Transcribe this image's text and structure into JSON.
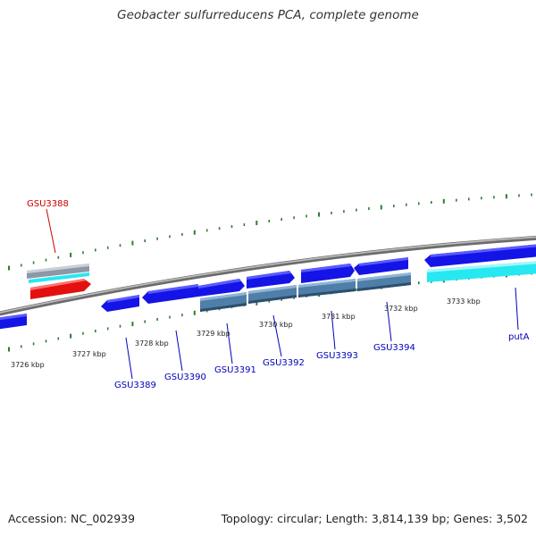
{
  "title": "Geobacter sulfurreducens PCA, complete genome",
  "footer": {
    "accession": "Accession: NC_002939",
    "summary": "Topology: circular; Length: 3,814,139 bp; Genes: 3,502"
  },
  "colors": {
    "backbone": "#8a8a8a",
    "tick": "#2e7d32",
    "gene_forward": "#1414e6",
    "gene_reverse_blue": "#4f7fa8",
    "gene_other": "#27e8f0",
    "gene_selected": "#e31010",
    "label_normal": "#0000bb",
    "label_selected": "#cc0000",
    "kbp_label": "#222222"
  },
  "kbp_labels": [
    "3726 kbp",
    "3727 kbp",
    "3728 kbp",
    "3729 kbp",
    "3730 kbp",
    "3731 kbp",
    "3732 kbp",
    "3733 kbp"
  ],
  "gene_labels": [
    {
      "text": "GSU3388",
      "selected": true
    },
    {
      "text": "GSU3389",
      "selected": false
    },
    {
      "text": "GSU3390",
      "selected": false
    },
    {
      "text": "GSU3391",
      "selected": false
    },
    {
      "text": "GSU3392",
      "selected": false
    },
    {
      "text": "GSU3393",
      "selected": false
    },
    {
      "text": "GSU3394",
      "selected": false
    },
    {
      "text": "putA",
      "selected": false
    }
  ]
}
